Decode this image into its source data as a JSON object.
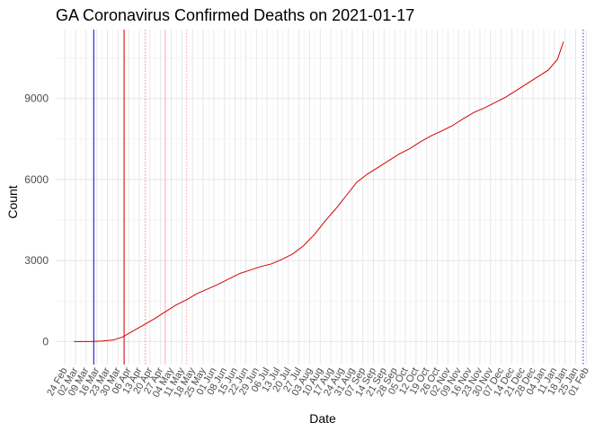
{
  "chart_data": {
    "type": "line",
    "title": "GA Coronavirus Confirmed Deaths on 2021-01-17",
    "xlabel": "Date",
    "ylabel": "Count",
    "x_range": [
      "2020-02-24",
      "2021-02-01"
    ],
    "ylim": [
      0,
      11100
    ],
    "grid": true,
    "legend": "none",
    "y_ticks": [
      0,
      3000,
      6000,
      9000
    ],
    "x_ticks": [
      {
        "date": "2020-02-24",
        "label": "24 Feb"
      },
      {
        "date": "2020-03-02",
        "label": "02 Mar"
      },
      {
        "date": "2020-03-09",
        "label": "09 Mar"
      },
      {
        "date": "2020-03-16",
        "label": "16 Mar"
      },
      {
        "date": "2020-03-23",
        "label": "23 Mar"
      },
      {
        "date": "2020-03-30",
        "label": "30 Mar"
      },
      {
        "date": "2020-04-06",
        "label": "06 Apr"
      },
      {
        "date": "2020-04-13",
        "label": "13 Apr"
      },
      {
        "date": "2020-04-20",
        "label": "20 Apr"
      },
      {
        "date": "2020-04-27",
        "label": "27 Apr"
      },
      {
        "date": "2020-05-04",
        "label": "04 May"
      },
      {
        "date": "2020-05-11",
        "label": "11 May"
      },
      {
        "date": "2020-05-18",
        "label": "18 May"
      },
      {
        "date": "2020-05-25",
        "label": "25 May"
      },
      {
        "date": "2020-06-01",
        "label": "01 Jun"
      },
      {
        "date": "2020-06-08",
        "label": "08 Jun"
      },
      {
        "date": "2020-06-15",
        "label": "15 Jun"
      },
      {
        "date": "2020-06-22",
        "label": "22 Jun"
      },
      {
        "date": "2020-06-29",
        "label": "29 Jun"
      },
      {
        "date": "2020-07-06",
        "label": "06 Jul"
      },
      {
        "date": "2020-07-13",
        "label": "13 Jul"
      },
      {
        "date": "2020-07-20",
        "label": "20 Jul"
      },
      {
        "date": "2020-07-27",
        "label": "27 Jul"
      },
      {
        "date": "2020-08-03",
        "label": "03 Aug"
      },
      {
        "date": "2020-08-10",
        "label": "10 Aug"
      },
      {
        "date": "2020-08-17",
        "label": "17 Aug"
      },
      {
        "date": "2020-08-24",
        "label": "24 Aug"
      },
      {
        "date": "2020-08-31",
        "label": "31 Aug"
      },
      {
        "date": "2020-09-07",
        "label": "07 Sep"
      },
      {
        "date": "2020-09-14",
        "label": "14 Sep"
      },
      {
        "date": "2020-09-21",
        "label": "21 Sep"
      },
      {
        "date": "2020-09-28",
        "label": "28 Sep"
      },
      {
        "date": "2020-10-05",
        "label": "05 Oct"
      },
      {
        "date": "2020-10-12",
        "label": "12 Oct"
      },
      {
        "date": "2020-10-19",
        "label": "19 Oct"
      },
      {
        "date": "2020-10-26",
        "label": "26 Oct"
      },
      {
        "date": "2020-11-02",
        "label": "02 Nov"
      },
      {
        "date": "2020-11-09",
        "label": "09 Nov"
      },
      {
        "date": "2020-11-16",
        "label": "16 Nov"
      },
      {
        "date": "2020-11-23",
        "label": "23 Nov"
      },
      {
        "date": "2020-11-30",
        "label": "30 Nov"
      },
      {
        "date": "2020-12-07",
        "label": "07 Dec"
      },
      {
        "date": "2020-12-14",
        "label": "14 Dec"
      },
      {
        "date": "2020-12-21",
        "label": "21 Dec"
      },
      {
        "date": "2020-12-28",
        "label": "28 Dec"
      },
      {
        "date": "2021-01-04",
        "label": "04 Jan"
      },
      {
        "date": "2021-01-11",
        "label": "11 Jan"
      },
      {
        "date": "2021-01-18",
        "label": "18 Jan"
      },
      {
        "date": "2021-01-25",
        "label": "25 Jan"
      },
      {
        "date": "2021-02-01",
        "label": "01 Feb"
      }
    ],
    "reference_lines": [
      {
        "date": "2020-03-14",
        "color": "#0000cc",
        "style": "solid"
      },
      {
        "date": "2020-04-03",
        "color": "#cc0000",
        "style": "solid"
      },
      {
        "date": "2020-04-17",
        "color": "#ff8080",
        "style": "dotted"
      },
      {
        "date": "2020-04-30",
        "color": "#ffb0b0",
        "style": "solid"
      },
      {
        "date": "2020-05-14",
        "color": "#ffb0b0",
        "style": "dotted"
      },
      {
        "date": "2021-01-30",
        "color": "#3333aa",
        "style": "dotted"
      }
    ],
    "series": [
      {
        "color": "#d40000",
        "points": [
          [
            "2020-03-01",
            0
          ],
          [
            "2020-03-12",
            0
          ],
          [
            "2020-03-20",
            20
          ],
          [
            "2020-03-27",
            60
          ],
          [
            "2020-04-02",
            170
          ],
          [
            "2020-04-09",
            400
          ],
          [
            "2020-04-16",
            620
          ],
          [
            "2020-04-23",
            850
          ],
          [
            "2020-04-30",
            1100
          ],
          [
            "2020-05-07",
            1350
          ],
          [
            "2020-05-14",
            1550
          ],
          [
            "2020-05-21",
            1780
          ],
          [
            "2020-05-28",
            1950
          ],
          [
            "2020-06-04",
            2130
          ],
          [
            "2020-06-11",
            2320
          ],
          [
            "2020-06-18",
            2520
          ],
          [
            "2020-06-25",
            2650
          ],
          [
            "2020-07-02",
            2780
          ],
          [
            "2020-07-09",
            2880
          ],
          [
            "2020-07-16",
            3050
          ],
          [
            "2020-07-23",
            3250
          ],
          [
            "2020-07-30",
            3550
          ],
          [
            "2020-08-06",
            3950
          ],
          [
            "2020-08-13",
            4450
          ],
          [
            "2020-08-20",
            4900
          ],
          [
            "2020-08-27",
            5400
          ],
          [
            "2020-09-03",
            5900
          ],
          [
            "2020-09-10",
            6200
          ],
          [
            "2020-09-17",
            6450
          ],
          [
            "2020-09-24",
            6700
          ],
          [
            "2020-10-01",
            6950
          ],
          [
            "2020-10-08",
            7150
          ],
          [
            "2020-10-15",
            7400
          ],
          [
            "2020-10-22",
            7620
          ],
          [
            "2020-10-29",
            7800
          ],
          [
            "2020-11-05",
            8000
          ],
          [
            "2020-11-12",
            8250
          ],
          [
            "2020-11-19",
            8480
          ],
          [
            "2020-11-26",
            8650
          ],
          [
            "2020-12-03",
            8850
          ],
          [
            "2020-12-10",
            9050
          ],
          [
            "2020-12-17",
            9300
          ],
          [
            "2020-12-24",
            9550
          ],
          [
            "2020-12-31",
            9800
          ],
          [
            "2021-01-07",
            10050
          ],
          [
            "2021-01-13",
            10450
          ],
          [
            "2021-01-17",
            11100
          ]
        ]
      }
    ]
  }
}
